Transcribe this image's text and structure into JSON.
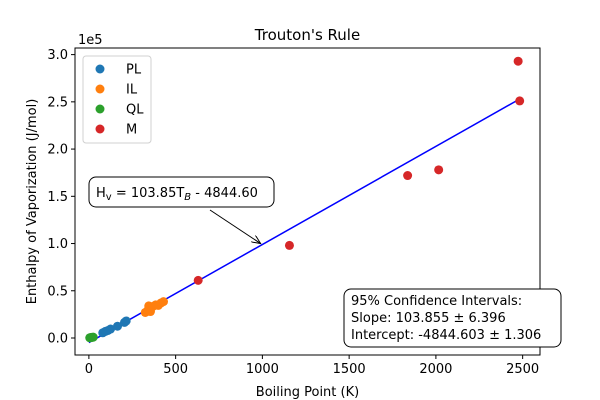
{
  "chart_data": {
    "type": "scatter",
    "title": "Trouton's Rule",
    "xlabel": "Boiling Point (K)",
    "ylabel": "Enthalpy of Vaporization (J/mol)",
    "y_multiplier_label": "1e5",
    "xlim": [
      -80,
      2600
    ],
    "ylim": [
      -18000,
      307000
    ],
    "xticks": [
      0,
      500,
      1000,
      1500,
      2000,
      2500
    ],
    "yticks": [
      0,
      50000,
      100000,
      150000,
      200000,
      250000,
      300000
    ],
    "ytick_labels": [
      "0.0",
      "0.5",
      "1.0",
      "1.5",
      "2.0",
      "2.5",
      "3.0"
    ],
    "grid": false,
    "legend_position": "top-left",
    "series": [
      {
        "name": "PL",
        "color": "#1f77b4",
        "points": [
          [
            80,
            5500
          ],
          [
            95,
            7000
          ],
          [
            110,
            8000
          ],
          [
            125,
            9500
          ],
          [
            165,
            12500
          ],
          [
            205,
            16500
          ],
          [
            215,
            18000
          ]
        ]
      },
      {
        "name": "IL",
        "color": "#ff7f0e",
        "points": [
          [
            325,
            27000
          ],
          [
            340,
            29500
          ],
          [
            345,
            34000
          ],
          [
            355,
            28000
          ],
          [
            370,
            33500
          ],
          [
            385,
            35000
          ],
          [
            400,
            34500
          ],
          [
            415,
            37000
          ],
          [
            430,
            38500
          ]
        ]
      },
      {
        "name": "QL",
        "color": "#2ca02c",
        "points": [
          [
            5,
            200
          ],
          [
            10,
            400
          ],
          [
            15,
            600
          ],
          [
            20,
            700
          ],
          [
            25,
            900
          ]
        ]
      },
      {
        "name": "M",
        "color": "#d62728",
        "points": [
          [
            630,
            61000
          ],
          [
            1156,
            98000
          ],
          [
            1837,
            172000
          ],
          [
            2016,
            178000
          ],
          [
            2474,
            293000
          ],
          [
            2483,
            251000
          ]
        ]
      }
    ],
    "fit_line": {
      "slope": 103.85,
      "intercept": -4844.6,
      "x_range": [
        0,
        2483
      ],
      "color": "#0000ff"
    },
    "equation_text": "H",
    "equation_sub": "v",
    "equation_text_2": " = 103.85T",
    "equation_sub_2": "B",
    "equation_text_3": " - 4844.60",
    "arrow_target": [
      990,
      100000
    ],
    "ci_lines": [
      "95% Confidence Intervals:",
      "Slope: 103.855 ± 6.396",
      "Intercept: -4844.603 ± 1.306"
    ]
  }
}
